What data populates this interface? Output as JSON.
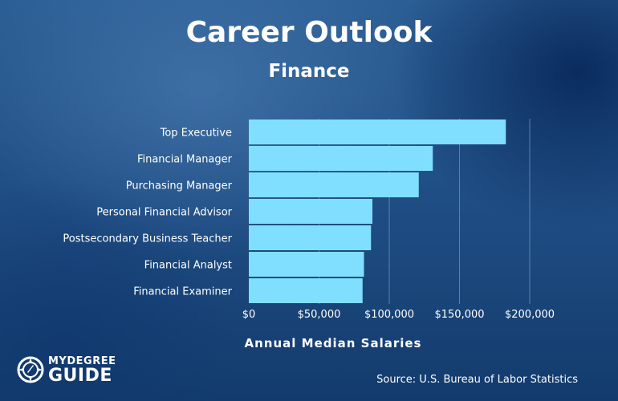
{
  "header": {
    "title": "Career Outlook",
    "subtitle": "Finance"
  },
  "chart_data": {
    "type": "bar",
    "orientation": "horizontal",
    "title": "Career Outlook",
    "subtitle": "Finance",
    "categories": [
      "Top Executive",
      "Financial Manager",
      "Purchasing Manager",
      "Personal Financial Advisor",
      "Postsecondary Business Teacher",
      "Financial Analyst",
      "Financial Examiner"
    ],
    "values": [
      183000,
      131000,
      121000,
      88000,
      87000,
      82000,
      81000
    ],
    "xlabel": "Annual Median Salaries",
    "ylabel": "",
    "xlim": [
      0,
      200000
    ],
    "xticks": [
      0,
      50000,
      100000,
      150000,
      200000
    ],
    "xtick_labels": [
      "$0",
      "$50,000",
      "$100,000",
      "$150,000",
      "$200,000"
    ],
    "grid": "vertical",
    "bar_color": "#80dfff",
    "grid_color": "#5a82b0"
  },
  "footer": {
    "source": "Source: U.S. Bureau of Labor Statistics",
    "logo_line1": "MYDEGREE",
    "logo_line2": "GUIDE",
    "logo_icon": "compass-icon"
  }
}
